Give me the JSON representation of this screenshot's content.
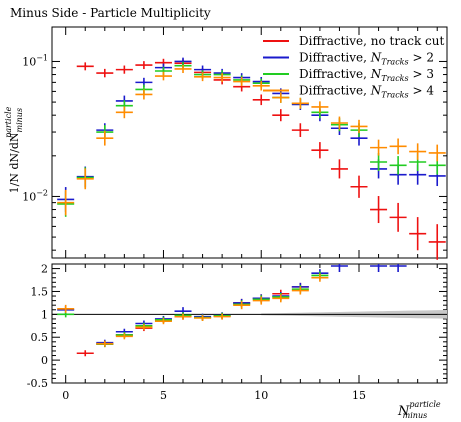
{
  "chart_data": {
    "type": "scatter",
    "title": "Minus Side - Particle Multiplicity",
    "x_axis": {
      "label_main": "N",
      "label_sup": "particle",
      "label_sub": "minus",
      "range": [
        -0.7,
        19.5
      ],
      "ticks": [
        0,
        5,
        10,
        15
      ]
    },
    "upper_y_axis": {
      "label": "1/N dN/dN",
      "label_sup": "particle",
      "label_sub": "minus",
      "scale": "log",
      "range": [
        0.0035,
        0.18
      ],
      "tick_labels": [
        "10^{-2}",
        "10^{-1}"
      ]
    },
    "lower_y_axis": {
      "range": [
        -0.5,
        2.1
      ],
      "ticks": [
        -0.5,
        0,
        0.5,
        1,
        1.5,
        2
      ],
      "tick_labels": [
        "-0.5",
        "0",
        "0.5",
        "1",
        "1.5",
        "2"
      ]
    },
    "legend": {
      "position": "top-right",
      "entries": [
        {
          "label": "Diffractive, no track cut",
          "color": "#ee1111"
        },
        {
          "label": "Diffractive, N_Tracks > 2",
          "color": "#1a1acc"
        },
        {
          "label": "Diffractive, N_Tracks > 3",
          "color": "#22cc22"
        },
        {
          "label": "Diffractive, N_Tracks > 4",
          "color": "#ff8c00"
        }
      ]
    },
    "series": [
      {
        "name": "Diffractive, no track cut",
        "color": "#ee1111",
        "x": [
          1,
          2,
          3,
          4,
          5,
          6,
          7,
          8,
          9,
          10,
          11,
          12,
          13,
          14,
          15,
          16,
          17,
          18,
          19
        ],
        "y": [
          0.092,
          0.082,
          0.087,
          0.094,
          0.098,
          0.097,
          0.083,
          0.073,
          0.065,
          0.052,
          0.04,
          0.031,
          0.022,
          0.016,
          0.0118,
          0.008,
          0.007,
          0.0053,
          0.0046
        ],
        "ratio": [
          0.15,
          0.35,
          0.55,
          0.7,
          0.88,
          0.95,
          0.93,
          0.96,
          1.25,
          1.35,
          1.45,
          1.6,
          null,
          null,
          null,
          null,
          null,
          null,
          null
        ]
      },
      {
        "name": "Diffractive, N_Tracks > 2",
        "color": "#1a1acc",
        "x": [
          0,
          1,
          2,
          3,
          4,
          5,
          6,
          7,
          8,
          9,
          10,
          11,
          12,
          13,
          14,
          15,
          16,
          17,
          18,
          19
        ],
        "y": [
          0.0095,
          0.014,
          0.031,
          0.051,
          0.07,
          0.09,
          0.1,
          0.087,
          0.082,
          0.076,
          0.071,
          0.058,
          0.048,
          0.04,
          0.032,
          0.027,
          0.016,
          0.0145,
          0.0145,
          0.0142
        ],
        "ratio": [
          1.1,
          null,
          0.38,
          0.62,
          0.8,
          0.9,
          1.07,
          0.95,
          0.98,
          1.25,
          1.35,
          1.4,
          1.6,
          1.9,
          2.0,
          null,
          2.0,
          2.0,
          null,
          null
        ]
      },
      {
        "name": "Diffractive, N_Tracks > 3",
        "color": "#22cc22",
        "x": [
          0,
          1,
          2,
          3,
          4,
          5,
          6,
          7,
          8,
          9,
          10,
          11,
          12,
          13,
          14,
          15,
          16,
          17,
          18,
          19
        ],
        "y": [
          0.0088,
          0.0138,
          0.03,
          0.047,
          0.062,
          0.085,
          0.093,
          0.08,
          0.08,
          0.073,
          0.069,
          0.054,
          0.049,
          0.042,
          0.034,
          0.031,
          0.018,
          0.017,
          0.018,
          0.017
        ],
        "ratio": [
          1.0,
          null,
          0.35,
          0.55,
          0.75,
          0.88,
          0.98,
          0.93,
          0.97,
          1.22,
          1.33,
          1.38,
          1.55,
          1.85,
          null,
          null,
          null,
          null,
          null,
          null
        ]
      },
      {
        "name": "Diffractive, N_Tracks > 4",
        "color": "#ff8c00",
        "x": [
          0,
          1,
          2,
          3,
          4,
          5,
          6,
          7,
          8,
          9,
          10,
          11,
          12,
          13,
          14,
          15,
          16,
          17,
          18,
          19
        ],
        "y": [
          0.009,
          0.0135,
          0.027,
          0.042,
          0.057,
          0.078,
          0.088,
          0.077,
          0.076,
          0.071,
          0.066,
          0.054,
          0.049,
          0.046,
          0.035,
          0.033,
          0.023,
          0.0235,
          0.0215,
          0.021
        ],
        "ratio": [
          1.12,
          null,
          0.36,
          0.52,
          0.72,
          0.85,
          0.95,
          0.92,
          0.95,
          1.2,
          1.3,
          1.35,
          1.52,
          1.8,
          null,
          null,
          null,
          null,
          null,
          null
        ]
      }
    ]
  }
}
